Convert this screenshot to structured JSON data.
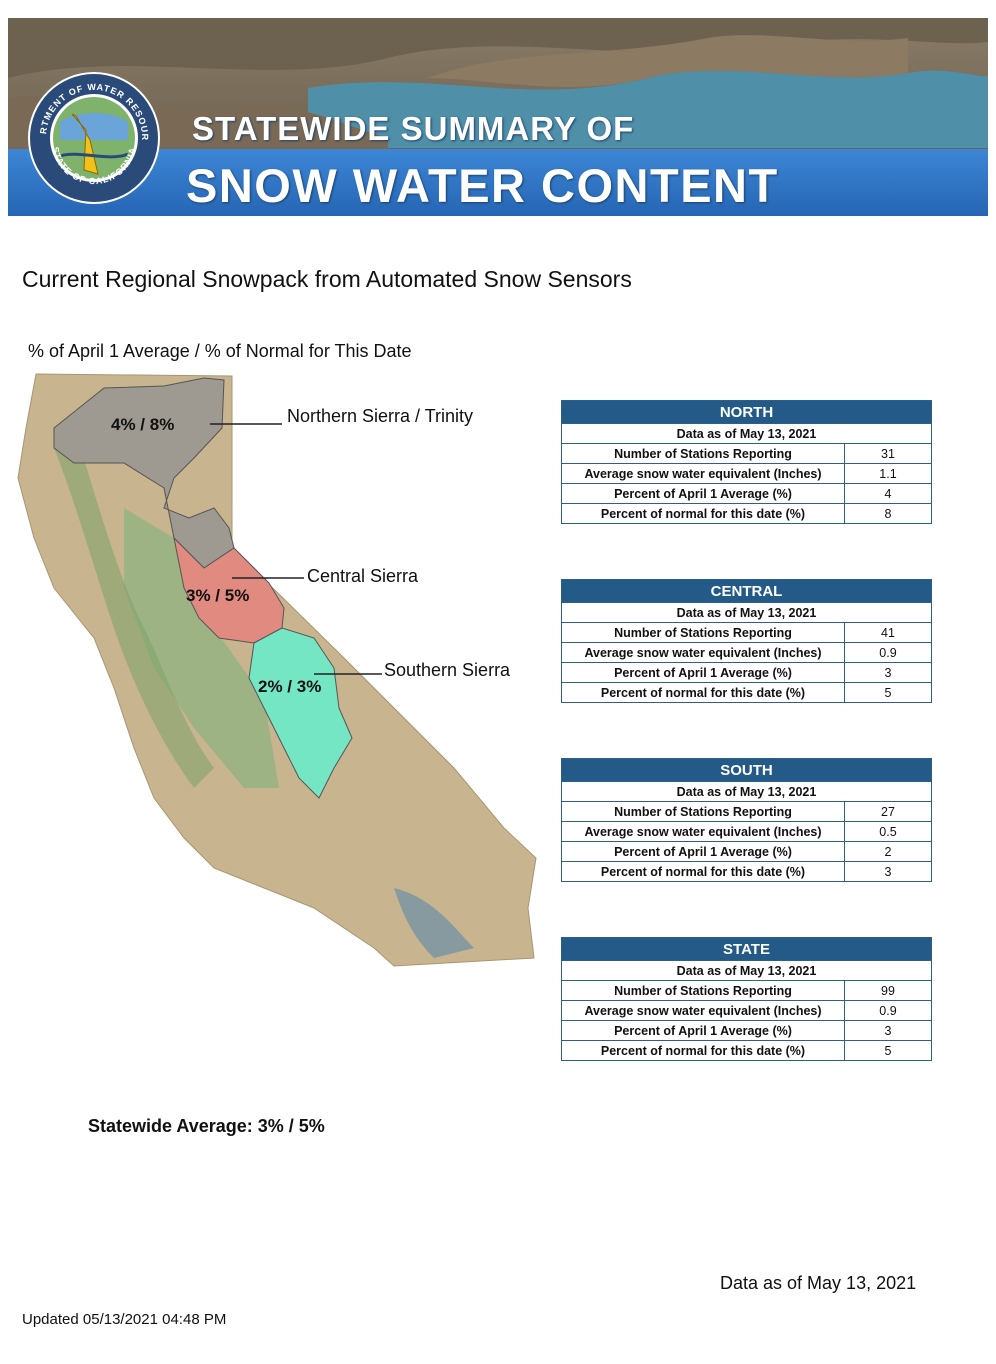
{
  "banner": {
    "line1": "STATEWIDE SUMMARY OF",
    "line2": "SNOW WATER CONTENT",
    "seal_top_text": "DEPARTMENT OF WATER RESOURCES",
    "seal_bottom_text": "STATE OF CALIFORNIA"
  },
  "subtitle": "Current Regional Snowpack from Automated Snow Sensors",
  "legend_note": "% of April 1 Average / % of Normal for This Date",
  "map": {
    "regions": [
      {
        "name": "Northern Sierra / Trinity",
        "pct": "4% / 8%",
        "color": "#9e9a92"
      },
      {
        "name": "Central Sierra",
        "pct": "3% / 5%",
        "color": "#e08a80"
      },
      {
        "name": "Southern Sierra",
        "pct": "2% / 3%",
        "color": "#74e6c4"
      }
    ]
  },
  "tables": [
    {
      "title": "NORTH",
      "as_of": "Data as of May 13, 2021",
      "rows": [
        {
          "label": "Number of Stations Reporting",
          "value": "31"
        },
        {
          "label": "Average snow water equivalent (Inches)",
          "value": "1.1"
        },
        {
          "label": "Percent of April 1 Average (%)",
          "value": "4"
        },
        {
          "label": "Percent of normal for this date (%)",
          "value": "8"
        }
      ]
    },
    {
      "title": "CENTRAL",
      "as_of": "Data as of May 13, 2021",
      "rows": [
        {
          "label": "Number of Stations Reporting",
          "value": "41"
        },
        {
          "label": "Average snow water equivalent (Inches)",
          "value": "0.9"
        },
        {
          "label": "Percent of April 1 Average (%)",
          "value": "3"
        },
        {
          "label": "Percent of normal for this date (%)",
          "value": "5"
        }
      ]
    },
    {
      "title": "SOUTH",
      "as_of": "Data as of May 13, 2021",
      "rows": [
        {
          "label": "Number of Stations Reporting",
          "value": "27"
        },
        {
          "label": "Average snow water equivalent (Inches)",
          "value": "0.5"
        },
        {
          "label": "Percent of April 1 Average (%)",
          "value": "2"
        },
        {
          "label": "Percent of normal for this date (%)",
          "value": "3"
        }
      ]
    },
    {
      "title": "STATE",
      "as_of": "Data as of May 13, 2021",
      "rows": [
        {
          "label": "Number of Stations Reporting",
          "value": "99"
        },
        {
          "label": "Average snow water equivalent (Inches)",
          "value": "0.9"
        },
        {
          "label": "Percent of April 1 Average (%)",
          "value": "3"
        },
        {
          "label": "Percent of normal for this date (%)",
          "value": "5"
        }
      ]
    }
  ],
  "statewide_average": "Statewide Average: 3% / 5%",
  "data_as_of": "Data as of May 13, 2021",
  "updated": "Updated 05/13/2021 04:48 PM",
  "colors": {
    "header_blue": "#245a87",
    "banner_blue": "#2f74c4"
  }
}
